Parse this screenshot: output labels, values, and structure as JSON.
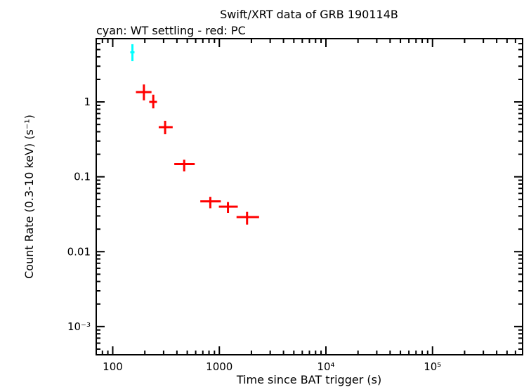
{
  "page": {
    "background": "#ffffff"
  },
  "chart_data": {
    "type": "scatter",
    "title": "Swift/XRT data of GRB 190114B",
    "subtitle": "cyan: WT settling - red: PC",
    "xlabel": "Time since BAT trigger (s)",
    "ylabel": "Count Rate (0.3-10 keV) (s⁻¹)",
    "xscale": "log",
    "yscale": "log",
    "xlim": [
      70,
      700000
    ],
    "ylim": [
      0.00042,
      7
    ],
    "grid": false,
    "legend_position": "none",
    "x_major_ticks": [
      100,
      1000,
      10000,
      100000
    ],
    "x_tick_labels": [
      "100",
      "1000",
      "10⁴",
      "10⁵"
    ],
    "y_major_ticks": [
      0.001,
      0.01,
      0.1,
      1
    ],
    "y_tick_labels": [
      "10⁻³",
      "0.01",
      "0.1",
      "1"
    ],
    "colors": {
      "wt_settling": "#00ffff",
      "pc": "#ff0000",
      "frame": "#000000"
    },
    "series": [
      {
        "name": "WT settling",
        "color": "#00ffff",
        "points": [
          {
            "t": 153,
            "t_err_lo": 7,
            "t_err_hi": 7,
            "rate": 4.6,
            "rate_err_lo": 1.1,
            "rate_err_hi": 1.3
          }
        ]
      },
      {
        "name": "PC",
        "color": "#ff0000",
        "points": [
          {
            "t": 196,
            "t_err_lo": 31,
            "t_err_hi": 35,
            "rate": 1.35,
            "rate_err_lo": 0.3,
            "rate_err_hi": 0.36
          },
          {
            "t": 240,
            "t_err_lo": 20,
            "t_err_hi": 20,
            "rate": 1.0,
            "rate_err_lo": 0.18,
            "rate_err_hi": 0.25
          },
          {
            "t": 310,
            "t_err_lo": 40,
            "t_err_hi": 55,
            "rate": 0.46,
            "rate_err_lo": 0.09,
            "rate_err_hi": 0.1
          },
          {
            "t": 468,
            "t_err_lo": 90,
            "t_err_hi": 120,
            "rate": 0.148,
            "rate_err_lo": 0.03,
            "rate_err_hi": 0.021
          },
          {
            "t": 823,
            "t_err_lo": 160,
            "t_err_hi": 210,
            "rate": 0.047,
            "rate_err_lo": 0.009,
            "rate_err_hi": 0.007
          },
          {
            "t": 1205,
            "t_err_lo": 215,
            "t_err_hi": 285,
            "rate": 0.04,
            "rate_err_lo": 0.007,
            "rate_err_hi": 0.006
          },
          {
            "t": 1820,
            "t_err_lo": 370,
            "t_err_hi": 540,
            "rate": 0.029,
            "rate_err_lo": 0.006,
            "rate_err_hi": 0.005
          }
        ]
      }
    ]
  }
}
